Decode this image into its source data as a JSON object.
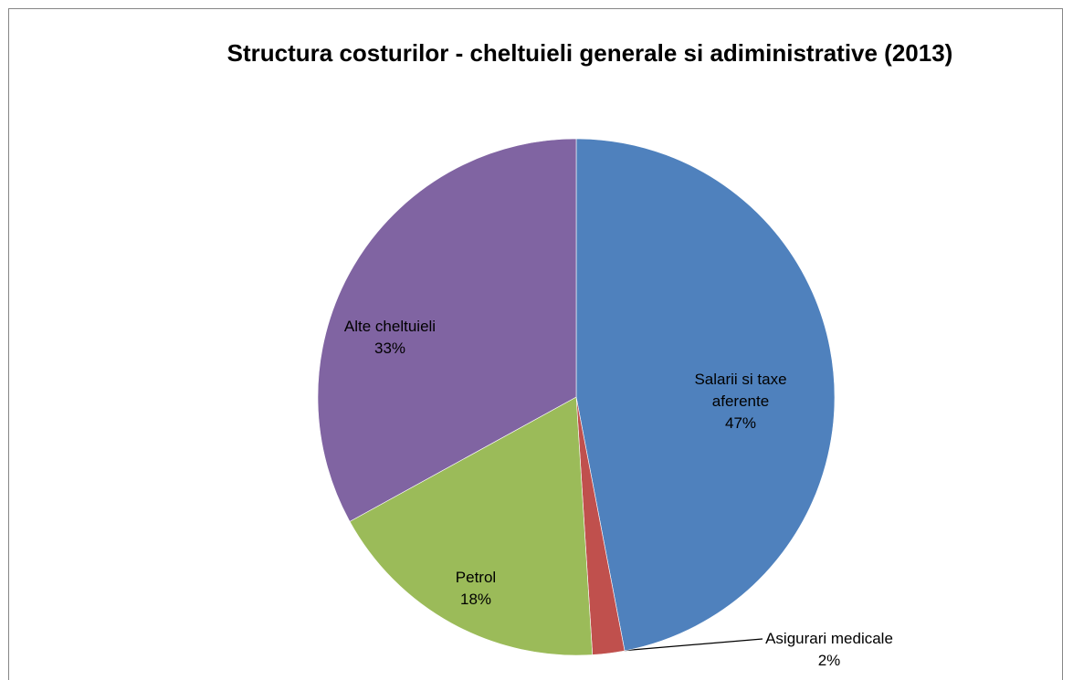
{
  "chart_data": {
    "type": "pie",
    "title": "Structura costurilor - cheltuieli generale si adiministrative (2013)",
    "categories": [
      "Salarii si taxe aferente",
      "Asigurari medicale",
      "Petrol",
      "Alte cheltuieli"
    ],
    "values": [
      47,
      2,
      18,
      33
    ],
    "value_labels": [
      "47%",
      "2%",
      "18%",
      "33%"
    ],
    "colors": [
      "#4f81bd",
      "#c0504d",
      "#9bbb59",
      "#8064a2"
    ]
  }
}
